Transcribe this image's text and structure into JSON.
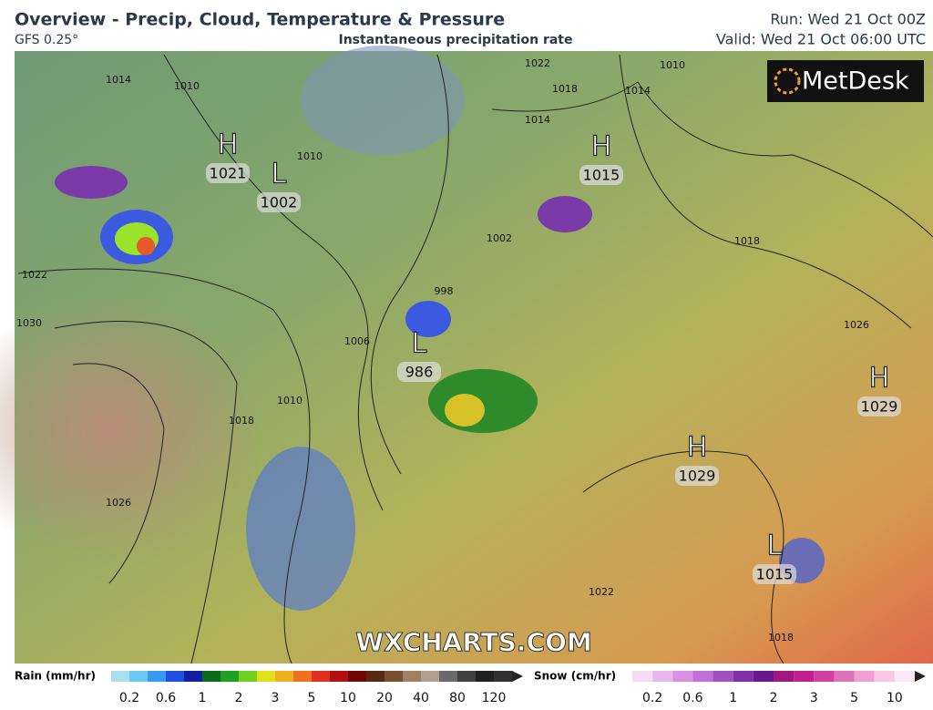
{
  "header": {
    "title": "Overview - Precip, Cloud, Temperature & Pressure",
    "model": "GFS 0.25°",
    "subtitle": "Instantaneous precipitation rate",
    "run": "Run: Wed 21 Oct 00Z",
    "valid": "Valid: Wed 21 Oct 06:00 UTC"
  },
  "logo": "MetDesk",
  "watermark": "WXCHARTS.COM",
  "pressure_centers": [
    {
      "symbol": "H",
      "value": "1021"
    },
    {
      "symbol": "L",
      "value": "1002"
    },
    {
      "symbol": "H",
      "value": "1015"
    },
    {
      "symbol": "L",
      "value": "986"
    },
    {
      "symbol": "H",
      "value": "1029"
    },
    {
      "symbol": "H",
      "value": "1029"
    },
    {
      "symbol": "L",
      "value": "1015"
    }
  ],
  "isobar_labels": [
    "1014",
    "1010",
    "1010",
    "1022",
    "1018",
    "1014",
    "1014",
    "1010",
    "1022",
    "1030",
    "1026",
    "1018",
    "1010",
    "1006",
    "998",
    "1002",
    "1018",
    "1026",
    "1022",
    "1018"
  ],
  "legend": {
    "rain": {
      "title": "Rain (mm/hr)",
      "labels": [
        "0.2",
        "0.6",
        "1",
        "2",
        "3",
        "5",
        "10",
        "20",
        "40",
        "80",
        "120"
      ]
    },
    "snow": {
      "title": "Snow (cm/hr)",
      "labels": [
        "0.2",
        "0.6",
        "1",
        "2",
        "3",
        "5",
        "10"
      ]
    }
  }
}
